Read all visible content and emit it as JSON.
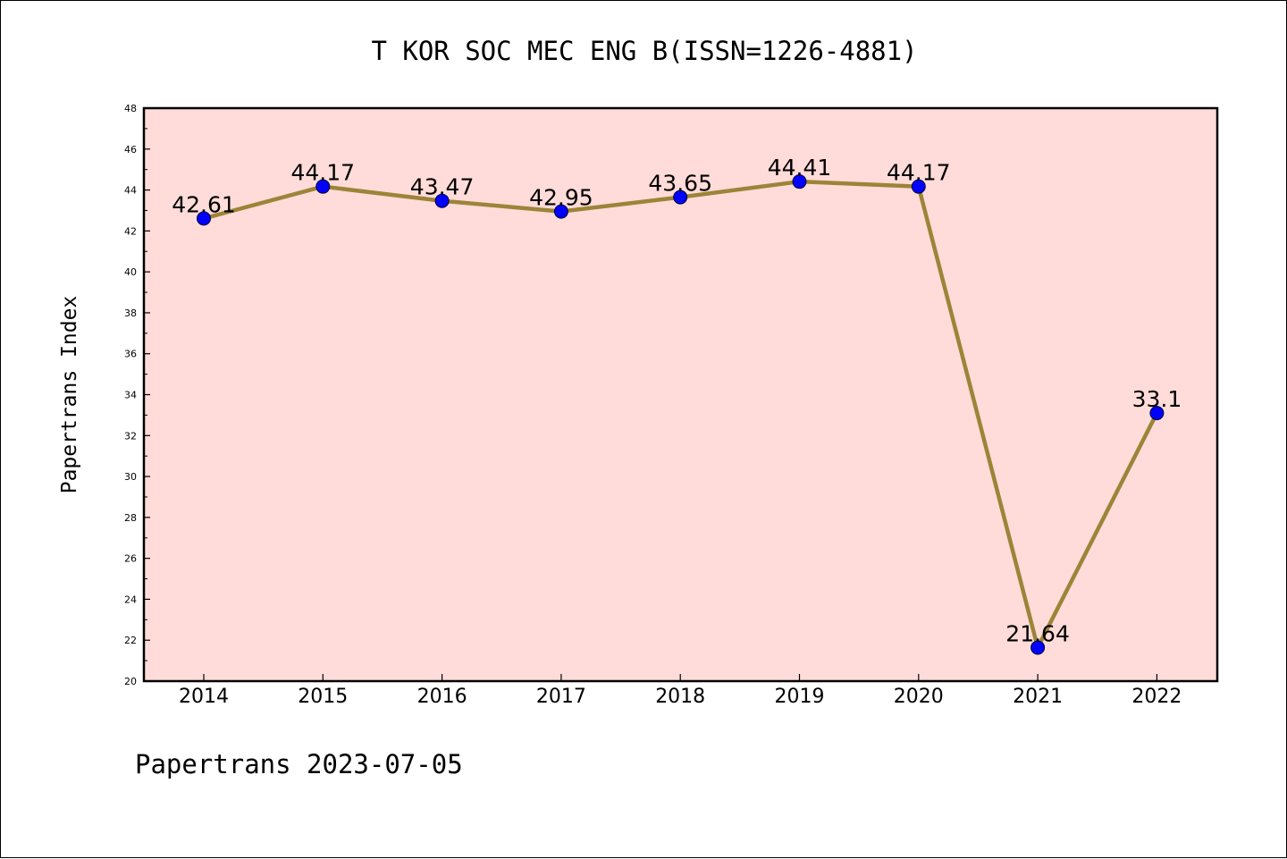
{
  "chart_data": {
    "type": "line",
    "title": "T KOR SOC MEC ENG B(ISSN=1226-4881)",
    "xlabel": "",
    "ylabel": "Papertrans Index",
    "ylim": [
      20,
      48
    ],
    "yticks": [
      20,
      22,
      24,
      26,
      28,
      30,
      32,
      34,
      36,
      38,
      40,
      42,
      44,
      46,
      48
    ],
    "categories": [
      "2014",
      "2015",
      "2016",
      "2017",
      "2018",
      "2019",
      "2020",
      "2021",
      "2022"
    ],
    "series": [
      {
        "values": [
          42.61,
          44.17,
          43.47,
          42.95,
          43.65,
          44.41,
          44.17,
          21.64,
          33.1
        ],
        "labels": [
          "42.61",
          "44.17",
          "43.47",
          "42.95",
          "43.65",
          "44.41",
          "44.17",
          "21.64",
          "33.1"
        ]
      }
    ],
    "grid": false,
    "colors": {
      "plot_background": "#ffdcd9",
      "line": "#9c8438",
      "marker": "#0000ff"
    }
  },
  "footer": "Papertrans 2023-07-05"
}
